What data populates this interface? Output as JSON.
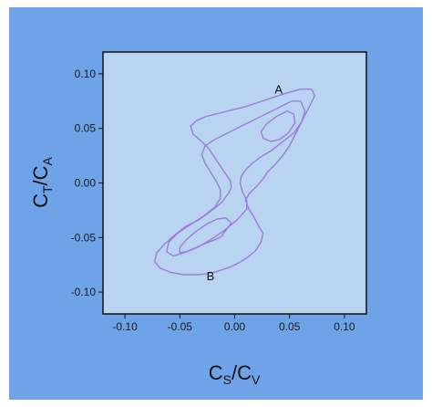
{
  "chart_data": {
    "type": "line",
    "title": "",
    "xlabel": {
      "main": "C",
      "sub": "S",
      "sep": "/",
      "main2": "C",
      "sub2": "V"
    },
    "ylabel": {
      "main": "C",
      "sub": "T",
      "sep": "/",
      "main2": "C",
      "sub2": "A"
    },
    "xlim": [
      -0.12,
      0.12
    ],
    "ylim": [
      -0.12,
      0.12
    ],
    "xticks": [
      -0.1,
      -0.05,
      0.0,
      0.05,
      0.1
    ],
    "yticks": [
      -0.1,
      -0.05,
      0.0,
      0.05,
      0.1
    ],
    "xtick_labels": [
      "-0.10",
      "-0.05",
      "0.00",
      "0.05",
      "0.10"
    ],
    "ytick_labels": [
      "-0.10",
      "-0.05",
      "0.00",
      "0.05",
      "0.10"
    ],
    "grid": false,
    "colors": {
      "outer_background": "#6fa3e8",
      "plot_background": "#b9d4f1",
      "frame": "#111111",
      "contour": "#9a7fd8"
    },
    "annotations": [
      {
        "text": "A",
        "x": 0.04,
        "y": 0.086
      },
      {
        "text": "B",
        "x": -0.022,
        "y": -0.085
      }
    ],
    "series": [
      {
        "x": [
          0.06,
          0.07,
          0.073,
          0.068,
          0.062,
          0.056,
          0.05,
          0.043,
          0.036,
          0.03,
          0.026,
          0.021,
          0.017,
          0.013,
          0.01,
          0.013,
          0.018,
          0.022,
          0.026,
          0.024,
          0.019,
          0.012,
          0.004,
          -0.004,
          -0.01,
          -0.016,
          -0.024,
          -0.034,
          -0.046,
          -0.058,
          -0.068,
          -0.073,
          -0.071,
          -0.064,
          -0.055,
          -0.045,
          -0.033,
          -0.022,
          -0.012,
          -0.006,
          -0.003,
          -0.004,
          -0.008,
          -0.012,
          -0.016,
          -0.02,
          -0.024,
          -0.03,
          -0.038,
          -0.04,
          -0.035,
          -0.026,
          -0.014,
          -0.002,
          0.01,
          0.022,
          0.034,
          0.046,
          0.06
        ],
        "y": [
          0.086,
          0.086,
          0.08,
          0.07,
          0.058,
          0.046,
          0.034,
          0.024,
          0.016,
          0.01,
          0.004,
          -0.002,
          -0.006,
          -0.01,
          -0.016,
          -0.024,
          -0.032,
          -0.04,
          -0.046,
          -0.054,
          -0.062,
          -0.068,
          -0.073,
          -0.077,
          -0.079,
          -0.081,
          -0.083,
          -0.084,
          -0.084,
          -0.082,
          -0.078,
          -0.072,
          -0.064,
          -0.056,
          -0.048,
          -0.04,
          -0.034,
          -0.026,
          -0.018,
          -0.01,
          -0.004,
          0.002,
          0.008,
          0.014,
          0.02,
          0.026,
          0.032,
          0.038,
          0.045,
          0.052,
          0.057,
          0.061,
          0.064,
          0.067,
          0.07,
          0.074,
          0.078,
          0.082,
          0.086
        ]
      },
      {
        "x": [
          0.06,
          0.064,
          0.061,
          0.054,
          0.044,
          0.034,
          0.024,
          0.016,
          0.01,
          0.006,
          0.005,
          0.007,
          0.011,
          0.011,
          0.002,
          -0.01,
          -0.022,
          -0.034,
          -0.046,
          -0.056,
          -0.062,
          -0.06,
          -0.052,
          -0.04,
          -0.028,
          -0.018,
          -0.013,
          -0.013,
          -0.017,
          -0.022,
          -0.027,
          -0.03,
          -0.027,
          -0.018,
          -0.006,
          0.006,
          0.018,
          0.03,
          0.042,
          0.052,
          0.06
        ],
        "y": [
          0.075,
          0.066,
          0.056,
          0.046,
          0.038,
          0.03,
          0.024,
          0.018,
          0.012,
          0.006,
          0.0,
          -0.008,
          -0.016,
          -0.024,
          -0.034,
          -0.044,
          -0.052,
          -0.059,
          -0.064,
          -0.067,
          -0.063,
          -0.054,
          -0.046,
          -0.038,
          -0.03,
          -0.022,
          -0.014,
          -0.006,
          0.002,
          0.01,
          0.018,
          0.026,
          0.034,
          0.04,
          0.046,
          0.052,
          0.058,
          0.064,
          0.07,
          0.075,
          0.075
        ]
      },
      {
        "x": [
          0.054,
          0.055,
          0.049,
          0.041,
          0.033,
          0.026,
          0.024,
          0.029,
          0.038,
          0.048,
          0.054
        ],
        "y": [
          0.063,
          0.055,
          0.046,
          0.04,
          0.038,
          0.041,
          0.047,
          0.054,
          0.061,
          0.066,
          0.063
        ]
      },
      {
        "x": [
          -0.003,
          -0.008,
          -0.016,
          -0.026,
          -0.036,
          -0.044,
          -0.05,
          -0.05,
          -0.044,
          -0.035,
          -0.026,
          -0.018,
          -0.012,
          -0.01,
          -0.007,
          -0.003
        ],
        "y": [
          -0.037,
          -0.032,
          -0.033,
          -0.038,
          -0.045,
          -0.052,
          -0.059,
          -0.064,
          -0.063,
          -0.059,
          -0.055,
          -0.052,
          -0.049,
          -0.046,
          -0.042,
          -0.037
        ]
      }
    ]
  }
}
